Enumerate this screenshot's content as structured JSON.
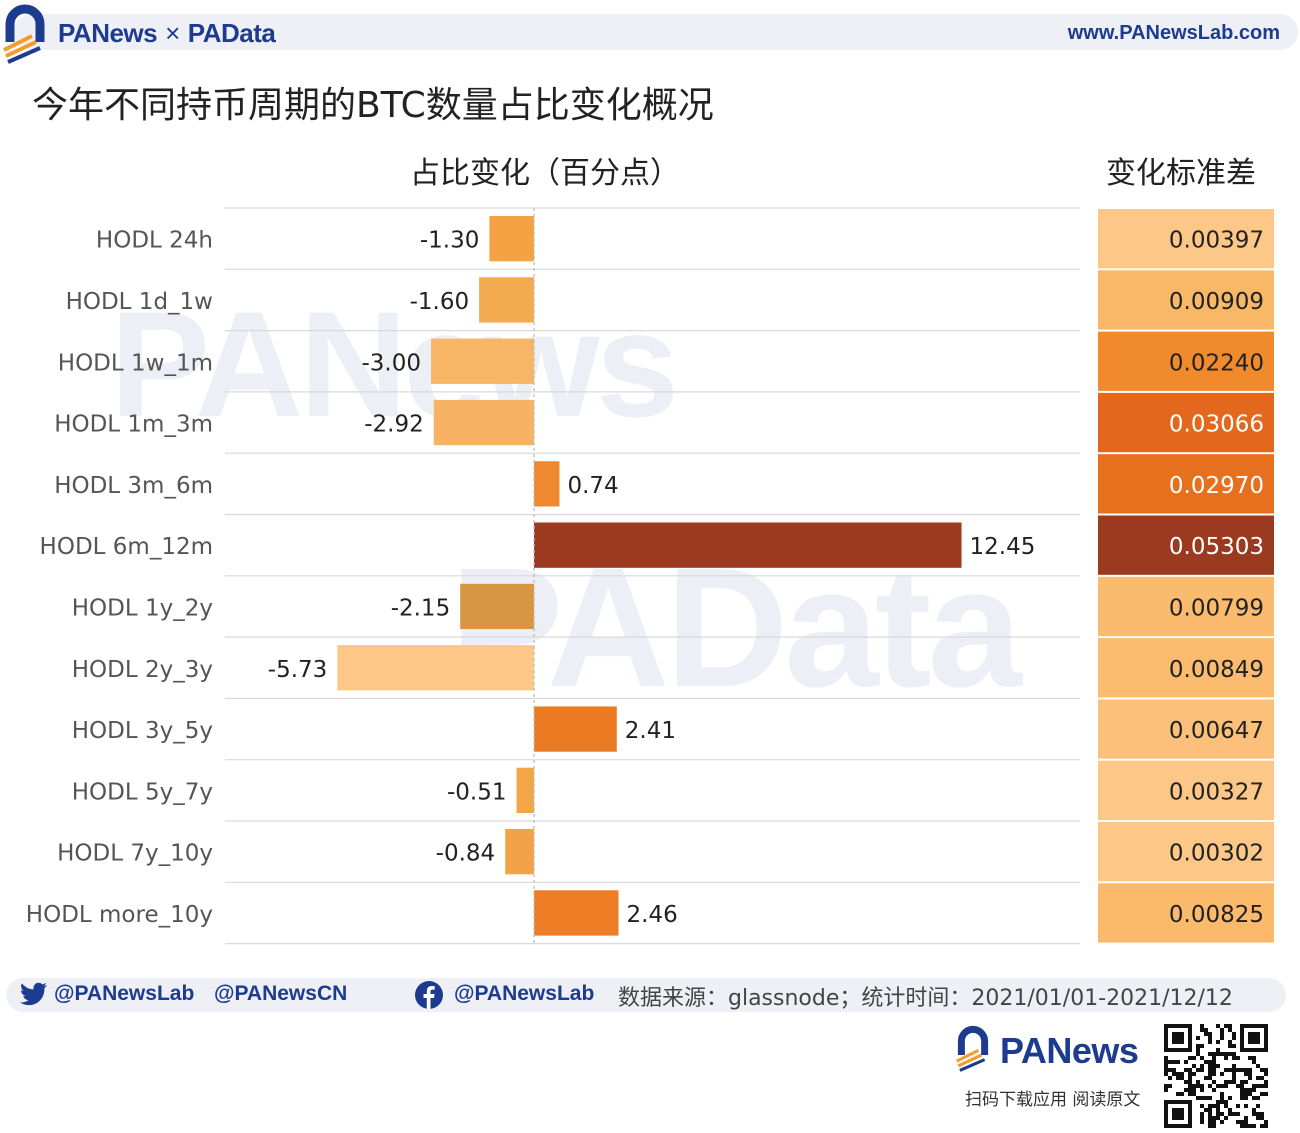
{
  "header": {
    "brand_pa": "PANews",
    "brand_x": "×",
    "brand_data": "PAData",
    "site": "www.PANewsLab.com"
  },
  "title": "今年不同持币周期的BTC数量占比变化概况",
  "watermarks": {
    "top": "PANews",
    "bottom": "PAData"
  },
  "chart_data": {
    "type": "bar",
    "orientation": "horizontal",
    "left_header": "占比变化（百分点）",
    "right_header": "变化标准差",
    "categories": [
      "HODL 24h",
      "HODL 1d_1w",
      "HODL 1w_1m",
      "HODL 1m_3m",
      "HODL 3m_6m",
      "HODL 6m_12m",
      "HODL 1y_2y",
      "HODL 2y_3y",
      "HODL 3y_5y",
      "HODL 5y_7y",
      "HODL 7y_10y",
      "HODL more_10y"
    ],
    "values": [
      -1.3,
      -1.6,
      -3.0,
      -2.92,
      0.74,
      12.45,
      -2.15,
      -5.73,
      2.41,
      -0.51,
      -0.84,
      2.46
    ],
    "value_labels": [
      "-1.30",
      "-1.60",
      "-3.00",
      "-2.92",
      "0.74",
      "12.45",
      "-2.15",
      "-5.73",
      "2.41",
      "-0.51",
      "-0.84",
      "2.46"
    ],
    "std_dev": [
      0.00397,
      0.00909,
      0.0224,
      0.03066,
      0.0297,
      0.05303,
      0.00799,
      0.00849,
      0.00647,
      0.00327,
      0.00302,
      0.00825
    ],
    "std_dev_labels": [
      "0.00397",
      "0.00909",
      "0.02240",
      "0.03066",
      "0.02970",
      "0.05303",
      "0.00799",
      "0.00849",
      "0.00647",
      "0.00327",
      "0.00302",
      "0.00825"
    ],
    "xlim": [
      -9.0,
      15.9
    ],
    "bar_colors": [
      "#f4a243",
      "#f4ab4f",
      "#f7b565",
      "#f7b363",
      "#ee8a2d",
      "#9b3a1f",
      "#d99642",
      "#fdc887",
      "#ea7b22",
      "#f2a648",
      "#f2a247",
      "#ed7e25"
    ],
    "cell_colors": [
      "#fdc887",
      "#f9b867",
      "#f08a2c",
      "#e4671e",
      "#e7701f",
      "#9b3a1f",
      "#fbbb6e",
      "#fbbc6f",
      "#fdc07a",
      "#fdc887",
      "#fdc887",
      "#fab96b"
    ],
    "grid": "horizontal row separators",
    "legend": "none"
  },
  "footer": {
    "twitter1": "@PANewsLab",
    "twitter2": "@PANewsCN",
    "facebook": "@PANewsLab",
    "source": "数据来源：glassnode；统计时间：2021/01/01-2021/12/12",
    "brand": "PANews",
    "scan_text": "扫码下载应用  阅读原文"
  },
  "icons": [
    "pa-arch-logo-icon",
    "twitter-icon",
    "facebook-icon",
    "qr-code-icon"
  ]
}
